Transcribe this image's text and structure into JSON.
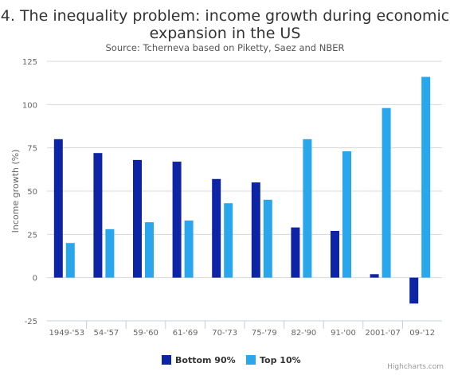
{
  "chart_data": {
    "type": "bar",
    "title_lines": [
      "4. The inequality problem: income growth during economic",
      "expansion in the US"
    ],
    "subtitle": "Source: Tcherneva based on Piketty, Saez and NBER",
    "xlabel": "",
    "ylabel": "Income growth (%)",
    "ylim": [
      -25,
      125
    ],
    "yticks": [
      -25,
      0,
      25,
      50,
      75,
      100,
      125
    ],
    "grid": true,
    "legend_position": "bottom-center",
    "categories": [
      "1949-'53",
      "54-'57",
      "59-'60",
      "61-'69",
      "70-'73",
      "75-'79",
      "82-'90",
      "91-'00",
      "2001-'07",
      "09-'12"
    ],
    "series": [
      {
        "name": "Bottom 90%",
        "color": "#0d24a6",
        "values": [
          80,
          72,
          68,
          67,
          57,
          55,
          29,
          27,
          2,
          -15
        ]
      },
      {
        "name": "Top 10%",
        "color": "#2aa7ec",
        "values": [
          20,
          28,
          32,
          33,
          43,
          45,
          80,
          73,
          98,
          116
        ]
      }
    ]
  },
  "credit": "Highcharts.com"
}
